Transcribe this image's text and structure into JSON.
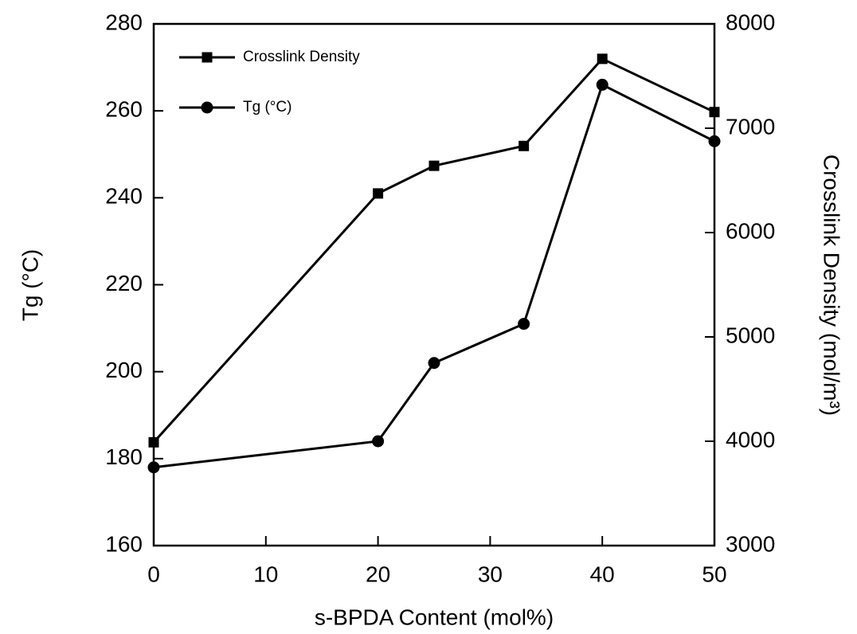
{
  "chart_data": {
    "type": "line",
    "x_label": "s-BPDA Content (mol%)",
    "y_label": "Tg (°C)",
    "y2_label": "Crosslink Density (mol/m³)",
    "xlim": [
      0,
      50
    ],
    "xticks": [
      0,
      10,
      20,
      30,
      40,
      50
    ],
    "ylim": [
      160,
      280
    ],
    "yticks": [
      160,
      180,
      200,
      220,
      240,
      260,
      280
    ],
    "y2lim": [
      3000,
      8000
    ],
    "y2ticks": [
      3000,
      4000,
      5000,
      6000,
      7000,
      8000
    ],
    "grid": false,
    "legend": "upper left",
    "series": [
      {
        "name": "Crosslink Density",
        "color": "#000000",
        "marker": "square",
        "axis": "y2",
        "x": [
          0,
          20,
          25,
          33,
          40,
          50
        ],
        "values": [
          3990,
          6375,
          6640,
          6830,
          7665,
          7155
        ]
      },
      {
        "name": "Tg (°C)",
        "color": "#000000",
        "marker": "circle",
        "x": [
          0,
          20,
          25,
          33,
          40,
          50
        ],
        "values": [
          178,
          184,
          202,
          211,
          266,
          253
        ]
      }
    ]
  }
}
